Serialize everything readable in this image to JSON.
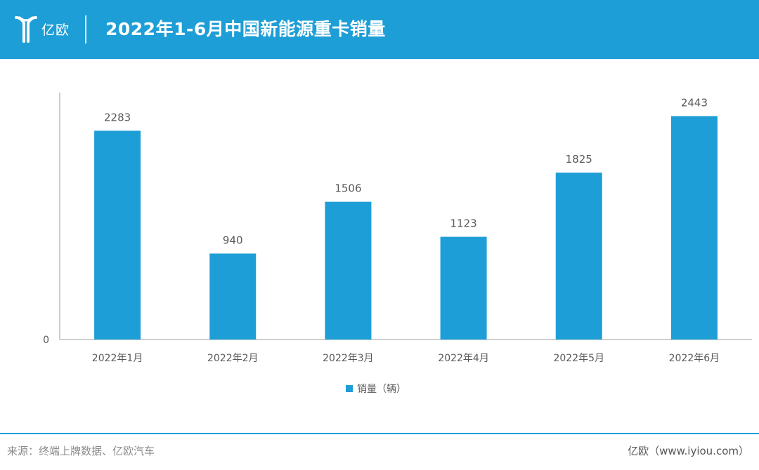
{
  "header": {
    "logo_text": "亿欧",
    "title": "2022年1-6月中国新能源重卡销量"
  },
  "colors": {
    "header_bg": "#1e9ed6",
    "bar": "#1e9ed6",
    "axis": "#bfbfbf",
    "label": "#595959"
  },
  "chart_data": {
    "type": "bar",
    "title": "2022年1-6月中国新能源重卡销量",
    "categories": [
      "2022年1月",
      "2022年2月",
      "2022年3月",
      "2022年4月",
      "2022年5月",
      "2022年6月"
    ],
    "series": [
      {
        "name": "销量（辆）",
        "values": [
          2283,
          940,
          1506,
          1123,
          1825,
          2443
        ]
      }
    ],
    "y_tick_labels": [
      "0"
    ],
    "ylim": [
      0,
      2700
    ],
    "grid": false,
    "legend": "bottom"
  },
  "footer": {
    "source": "来源：终端上牌数据、亿欧汽车",
    "site": "亿欧（www.iyiou.com）"
  }
}
